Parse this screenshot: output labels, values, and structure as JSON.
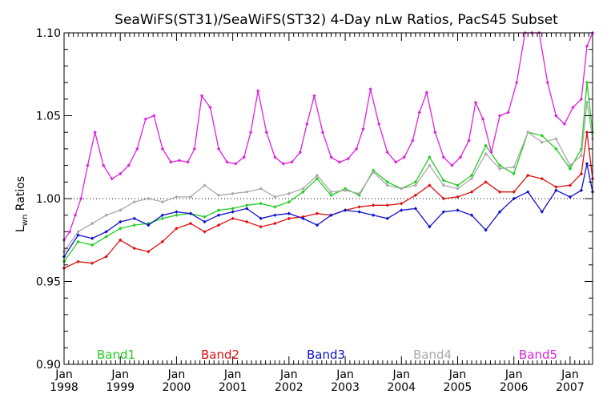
{
  "chart_data": {
    "type": "line",
    "title": "SeaWiFS(ST31)/SeaWiFS(ST32) 4-Day nLw Ratios, PacS45 Subset",
    "ylabel_main": "L",
    "ylabel_sub": "wn",
    "ylabel_rest": " Ratios",
    "xlabel": "",
    "xlim": [
      1998.0,
      2007.4
    ],
    "ylim": [
      0.9,
      1.1
    ],
    "y_major_ticks": [
      0.9,
      0.95,
      1.0,
      1.05,
      1.1
    ],
    "y_tick_labels": [
      "0.90",
      "0.95",
      "1.00",
      "1.05",
      "1.10"
    ],
    "y_minor_step": 0.01,
    "x_tick_years": [
      1998,
      1999,
      2000,
      2001,
      2002,
      2003,
      2004,
      2005,
      2006,
      2007
    ],
    "x_tick_month_label": "Jan",
    "x_tick_year_labels": [
      "1998",
      "1999",
      "2000",
      "2001",
      "2002",
      "2003",
      "2004",
      "2005",
      "2006",
      "2007"
    ],
    "reference_line": {
      "y": 1.0,
      "style": "dotted"
    },
    "legend_position": "bottom",
    "series": [
      {
        "name": "Band1",
        "color": "#22cc22",
        "x": [
          1998.0,
          1998.25,
          1998.5,
          1998.75,
          1999.0,
          1999.25,
          1999.5,
          1999.75,
          2000.0,
          2000.25,
          2000.5,
          2000.75,
          2001.0,
          2001.25,
          2001.5,
          2001.75,
          2002.0,
          2002.25,
          2002.5,
          2002.75,
          2003.0,
          2003.25,
          2003.5,
          2003.75,
          2004.0,
          2004.25,
          2004.5,
          2004.75,
          2005.0,
          2005.25,
          2005.5,
          2005.75,
          2006.0,
          2006.25,
          2006.5,
          2006.75,
          2007.0,
          2007.2,
          2007.3,
          2007.4
        ],
        "y": [
          0.962,
          0.974,
          0.972,
          0.977,
          0.982,
          0.984,
          0.985,
          0.988,
          0.99,
          0.991,
          0.989,
          0.993,
          0.994,
          0.996,
          0.997,
          0.995,
          0.998,
          1.004,
          1.012,
          1.002,
          1.006,
          1.002,
          1.017,
          1.01,
          1.006,
          1.01,
          1.025,
          1.011,
          1.008,
          1.014,
          1.032,
          1.02,
          1.015,
          1.04,
          1.038,
          1.03,
          1.018,
          1.03,
          1.07,
          1.04
        ]
      },
      {
        "name": "Band2",
        "color": "#dd1111",
        "x": [
          1998.0,
          1998.25,
          1998.5,
          1998.75,
          1999.0,
          1999.25,
          1999.5,
          1999.75,
          2000.0,
          2000.25,
          2000.5,
          2000.75,
          2001.0,
          2001.25,
          2001.5,
          2001.75,
          2002.0,
          2002.25,
          2002.5,
          2002.75,
          2003.0,
          2003.25,
          2003.5,
          2003.75,
          2004.0,
          2004.25,
          2004.5,
          2004.75,
          2005.0,
          2005.25,
          2005.5,
          2005.75,
          2006.0,
          2006.25,
          2006.5,
          2006.75,
          2007.0,
          2007.2,
          2007.3,
          2007.4
        ],
        "y": [
          0.958,
          0.962,
          0.961,
          0.965,
          0.975,
          0.97,
          0.968,
          0.974,
          0.982,
          0.985,
          0.98,
          0.984,
          0.988,
          0.986,
          0.983,
          0.985,
          0.988,
          0.989,
          0.991,
          0.99,
          0.993,
          0.995,
          0.996,
          0.996,
          0.997,
          1.002,
          1.008,
          1.0,
          1.001,
          1.004,
          1.01,
          1.004,
          1.004,
          1.014,
          1.012,
          1.007,
          1.008,
          1.015,
          1.04,
          1.012
        ]
      },
      {
        "name": "Band3",
        "color": "#1111cc",
        "x": [
          1998.0,
          1998.25,
          1998.5,
          1998.75,
          1999.0,
          1999.25,
          1999.5,
          1999.75,
          2000.0,
          2000.25,
          2000.5,
          2000.75,
          2001.0,
          2001.25,
          2001.5,
          2001.75,
          2002.0,
          2002.25,
          2002.5,
          2002.75,
          2003.0,
          2003.25,
          2003.5,
          2003.75,
          2004.0,
          2004.25,
          2004.5,
          2004.75,
          2005.0,
          2005.25,
          2005.5,
          2005.75,
          2006.0,
          2006.25,
          2006.5,
          2006.75,
          2007.0,
          2007.2,
          2007.3,
          2007.4
        ],
        "y": [
          0.965,
          0.978,
          0.976,
          0.98,
          0.986,
          0.988,
          0.984,
          0.99,
          0.992,
          0.991,
          0.986,
          0.99,
          0.992,
          0.994,
          0.988,
          0.99,
          0.991,
          0.988,
          0.984,
          0.99,
          0.993,
          0.992,
          0.99,
          0.988,
          0.993,
          0.994,
          0.983,
          0.992,
          0.993,
          0.99,
          0.981,
          0.992,
          1.0,
          1.004,
          0.992,
          1.005,
          1.001,
          1.005,
          1.021,
          1.004
        ]
      },
      {
        "name": "Band4",
        "color": "#aaaaaa",
        "x": [
          1998.0,
          1998.25,
          1998.5,
          1998.75,
          1999.0,
          1999.25,
          1999.5,
          1999.75,
          2000.0,
          2000.25,
          2000.5,
          2000.75,
          2001.0,
          2001.25,
          2001.5,
          2001.75,
          2002.0,
          2002.25,
          2002.5,
          2002.75,
          2003.0,
          2003.25,
          2003.5,
          2003.75,
          2004.0,
          2004.25,
          2004.5,
          2004.75,
          2005.0,
          2005.25,
          2005.5,
          2005.75,
          2006.0,
          2006.25,
          2006.5,
          2006.75,
          2007.0,
          2007.2,
          2007.3,
          2007.4
        ],
        "y": [
          0.968,
          0.98,
          0.985,
          0.99,
          0.993,
          0.998,
          1.0,
          0.998,
          1.001,
          1.001,
          1.008,
          1.002,
          1.003,
          1.004,
          1.006,
          1.001,
          1.003,
          1.006,
          1.014,
          1.004,
          1.005,
          1.003,
          1.016,
          1.008,
          1.006,
          1.008,
          1.02,
          1.008,
          1.006,
          1.012,
          1.027,
          1.018,
          1.019,
          1.04,
          1.034,
          1.036,
          1.02,
          1.026,
          1.058,
          1.036
        ]
      },
      {
        "name": "Band5",
        "color": "#dd22dd",
        "x": [
          1998.0,
          1998.1,
          1998.2,
          1998.3,
          1998.42,
          1998.55,
          1998.7,
          1998.85,
          1999.0,
          1999.15,
          1999.3,
          1999.45,
          1999.6,
          1999.75,
          1999.9,
          2000.05,
          2000.2,
          2000.32,
          2000.45,
          2000.6,
          2000.75,
          2000.9,
          2001.05,
          2001.2,
          2001.32,
          2001.45,
          2001.6,
          2001.75,
          2001.9,
          2002.05,
          2002.2,
          2002.32,
          2002.45,
          2002.6,
          2002.75,
          2002.9,
          2003.05,
          2003.2,
          2003.32,
          2003.45,
          2003.6,
          2003.75,
          2003.9,
          2004.05,
          2004.2,
          2004.32,
          2004.45,
          2004.6,
          2004.75,
          2004.9,
          2005.05,
          2005.2,
          2005.32,
          2005.45,
          2005.6,
          2005.75,
          2005.9,
          2006.05,
          2006.2,
          2006.32,
          2006.45,
          2006.6,
          2006.75,
          2006.9,
          2007.05,
          2007.2,
          2007.3,
          2007.4
        ],
        "y": [
          0.975,
          0.98,
          0.99,
          1.0,
          1.02,
          1.04,
          1.02,
          1.012,
          1.015,
          1.02,
          1.03,
          1.048,
          1.05,
          1.03,
          1.022,
          1.023,
          1.022,
          1.03,
          1.062,
          1.055,
          1.03,
          1.022,
          1.021,
          1.025,
          1.04,
          1.065,
          1.04,
          1.025,
          1.021,
          1.022,
          1.028,
          1.045,
          1.062,
          1.04,
          1.025,
          1.022,
          1.024,
          1.03,
          1.042,
          1.066,
          1.045,
          1.028,
          1.022,
          1.025,
          1.035,
          1.052,
          1.064,
          1.04,
          1.025,
          1.02,
          1.025,
          1.035,
          1.058,
          1.048,
          1.028,
          1.05,
          1.052,
          1.07,
          1.1,
          1.1,
          1.1,
          1.07,
          1.05,
          1.045,
          1.055,
          1.06,
          1.092,
          1.1
        ]
      }
    ]
  }
}
